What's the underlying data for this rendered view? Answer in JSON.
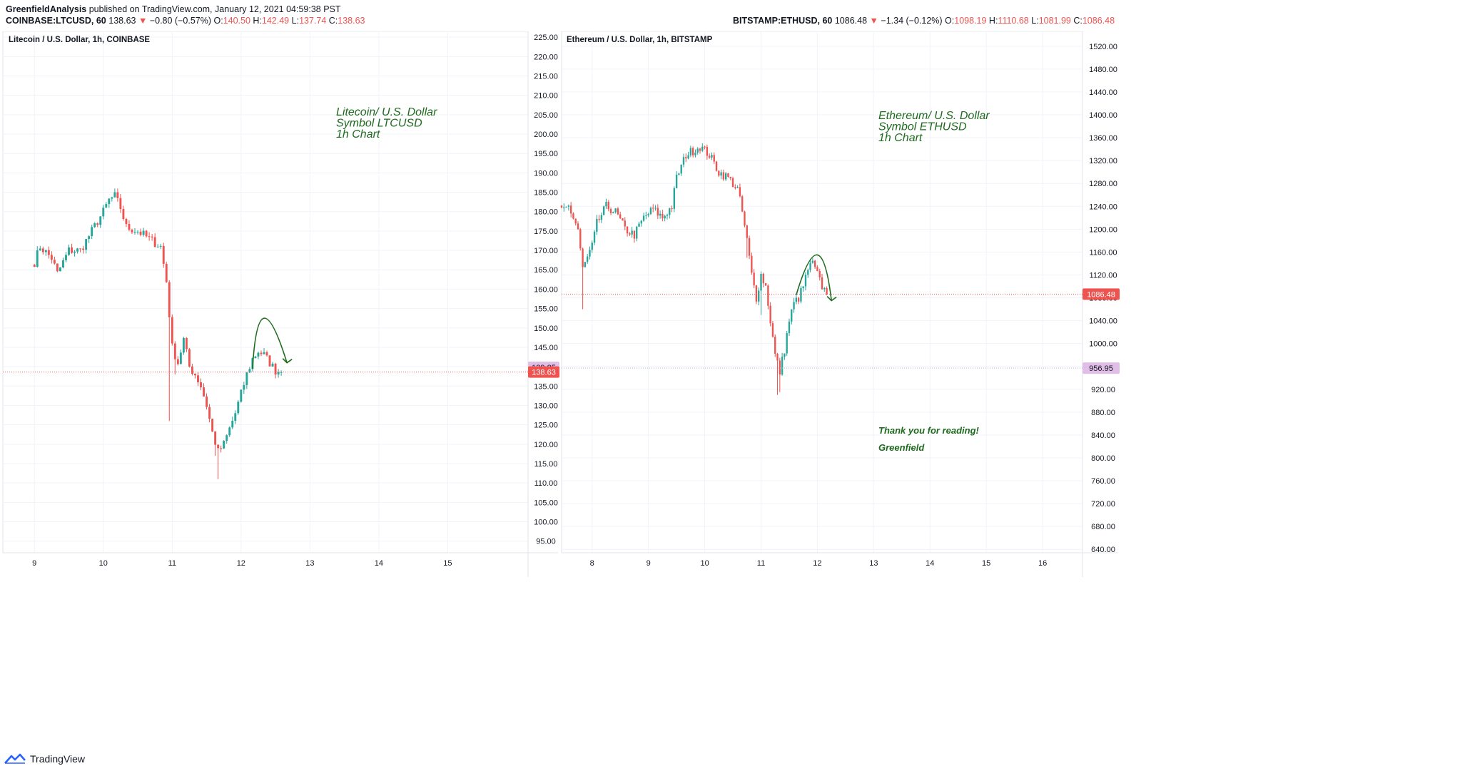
{
  "header": {
    "author": "GreenfieldAnalysis",
    "published": "published on TradingView.com, January 12, 2021 04:59:38 PST",
    "left": {
      "symbol": "COINBASE:LTCUSD, 60",
      "price": "138.63",
      "change": "−0.80 (−0.57%)",
      "o_label": "O:",
      "o": "140.50",
      "h_label": "H:",
      "h": "142.49",
      "l_label": "L:",
      "l": "137.74",
      "c_label": "C:",
      "c": "138.63"
    },
    "right": {
      "symbol": "BITSTAMP:ETHUSD, 60",
      "price": "1086.48",
      "change": "−1.34 (−0.12%)",
      "o_label": "O:",
      "o": "1098.19",
      "h_label": "H:",
      "h": "1110.68",
      "l_label": "L:",
      "l": "1081.99",
      "c_label": "C:",
      "c": "1086.48"
    }
  },
  "footer": {
    "brand": "TradingView"
  },
  "colors": {
    "up": "#26a69a",
    "down": "#ef5350",
    "annotation": "#1e6b1e",
    "bg": "#ffffff",
    "grid": "#f0f3fa",
    "axis_text": "#131722"
  },
  "chart_data": [
    {
      "type": "candlestick",
      "title": "Litecoin / U.S. Dollar, 1h, COINBASE",
      "annotation_lines": [
        "Litecoin/ U.S. Dollar",
        "Symbol LTCUSD",
        "1h Chart"
      ],
      "x_ticks": [
        "9",
        "10",
        "11",
        "12",
        "13",
        "14",
        "15"
      ],
      "x_tick_index": [
        0,
        24,
        48,
        72,
        96,
        120,
        144
      ],
      "x_start": -11,
      "x_end": 172,
      "y_ticks": [
        "225.00",
        "220.00",
        "215.00",
        "210.00",
        "205.00",
        "200.00",
        "195.00",
        "190.00",
        "185.00",
        "180.00",
        "175.00",
        "170.00",
        "165.00",
        "160.00",
        "155.00",
        "150.00",
        "145.00",
        "140.00",
        "135.00",
        "130.00",
        "125.00",
        "120.00",
        "115.00",
        "110.00",
        "105.00",
        "100.00",
        "95.00"
      ],
      "ylim": [
        92,
        226.5
      ],
      "last_price": "138.63",
      "last_value": 138.63,
      "mark_price": "139.85",
      "mark_value": 139.85,
      "marker_index": [
        86,
        84
      ],
      "arc": {
        "from": [
          76,
          139.5
        ],
        "peak": [
          80,
          152.5
        ],
        "to": [
          88,
          141
        ]
      },
      "anchors": [
        [
          0,
          167
        ],
        [
          2,
          171
        ],
        [
          6,
          168
        ],
        [
          8,
          164
        ],
        [
          12,
          170
        ],
        [
          16,
          170
        ],
        [
          20,
          175
        ],
        [
          24,
          180
        ],
        [
          26,
          183
        ],
        [
          28,
          184
        ],
        [
          30,
          181
        ],
        [
          32,
          176
        ],
        [
          36,
          175
        ],
        [
          40,
          173
        ],
        [
          44,
          171
        ],
        [
          46,
          162
        ],
        [
          48,
          145
        ],
        [
          50,
          141
        ],
        [
          52,
          147
        ],
        [
          54,
          140
        ],
        [
          56,
          138
        ],
        [
          58,
          135
        ],
        [
          60,
          130
        ],
        [
          62,
          123
        ],
        [
          64,
          118
        ],
        [
          66,
          120
        ],
        [
          68,
          124
        ],
        [
          70,
          128
        ],
        [
          72,
          133
        ],
        [
          74,
          138
        ],
        [
          76,
          142
        ],
        [
          78,
          144
        ],
        [
          80,
          143
        ],
        [
          82,
          141
        ],
        [
          84,
          139
        ],
        [
          86,
          138.6
        ]
      ],
      "wicks": [
        [
          47,
          126
        ],
        [
          49,
          138
        ],
        [
          63,
          117
        ],
        [
          64,
          111
        ]
      ]
    },
    {
      "type": "candlestick",
      "title": "Ethereum / U.S. Dollar, 1h, BITSTAMP",
      "annotation_lines": [
        "Ethereum/ U.S. Dollar",
        "Symbol ETHUSD",
        "1h Chart"
      ],
      "thanks": "Thank you for reading!",
      "signature": "Greenfield",
      "x_ticks": [
        "8",
        "9",
        "10",
        "11",
        "12",
        "13",
        "14",
        "15",
        "16"
      ],
      "x_tick_index": [
        0,
        24,
        48,
        72,
        96,
        120,
        144,
        168,
        192
      ],
      "x_start": -13,
      "x_end": 209,
      "y_ticks": [
        "1520.00",
        "1480.00",
        "1440.00",
        "1400.00",
        "1360.00",
        "1320.00",
        "1280.00",
        "1240.00",
        "1200.00",
        "1160.00",
        "1120.00",
        "1080.00",
        "1040.00",
        "1000.00",
        "960.00",
        "920.00",
        "880.00",
        "840.00",
        "800.00",
        "760.00",
        "720.00",
        "680.00",
        "640.00"
      ],
      "ylim": [
        634,
        1546
      ],
      "last_price": "1086.48",
      "last_value": 1086.48,
      "mark_price": "956.95",
      "mark_value": 956.95,
      "marker_index": [
        100,
        98
      ],
      "arc": {
        "from": [
          87,
          1085
        ],
        "peak": [
          96,
          1155
        ],
        "to": [
          102,
          1075
        ]
      },
      "anchors": [
        [
          -13,
          1230
        ],
        [
          -10,
          1240
        ],
        [
          -6,
          1200
        ],
        [
          -4,
          1130
        ],
        [
          0,
          1170
        ],
        [
          2,
          1210
        ],
        [
          6,
          1240
        ],
        [
          10,
          1230
        ],
        [
          14,
          1200
        ],
        [
          18,
          1190
        ],
        [
          22,
          1220
        ],
        [
          26,
          1235
        ],
        [
          30,
          1220
        ],
        [
          34,
          1240
        ],
        [
          36,
          1290
        ],
        [
          40,
          1330
        ],
        [
          46,
          1345
        ],
        [
          50,
          1330
        ],
        [
          54,
          1300
        ],
        [
          58,
          1290
        ],
        [
          62,
          1270
        ],
        [
          64,
          1230
        ],
        [
          66,
          1180
        ],
        [
          68,
          1120
        ],
        [
          70,
          1080
        ],
        [
          72,
          1120
        ],
        [
          74,
          1100
        ],
        [
          76,
          1040
        ],
        [
          78,
          980
        ],
        [
          80,
          950
        ],
        [
          82,
          990
        ],
        [
          84,
          1040
        ],
        [
          86,
          1070
        ],
        [
          88,
          1080
        ],
        [
          90,
          1100
        ],
        [
          92,
          1130
        ],
        [
          94,
          1140
        ],
        [
          96,
          1120
        ],
        [
          98,
          1100
        ],
        [
          100,
          1086.5
        ]
      ],
      "wicks": [
        [
          -4,
          1060
        ],
        [
          79,
          910
        ],
        [
          80,
          915
        ],
        [
          72,
          1050
        ],
        [
          66,
          1150
        ]
      ]
    }
  ]
}
